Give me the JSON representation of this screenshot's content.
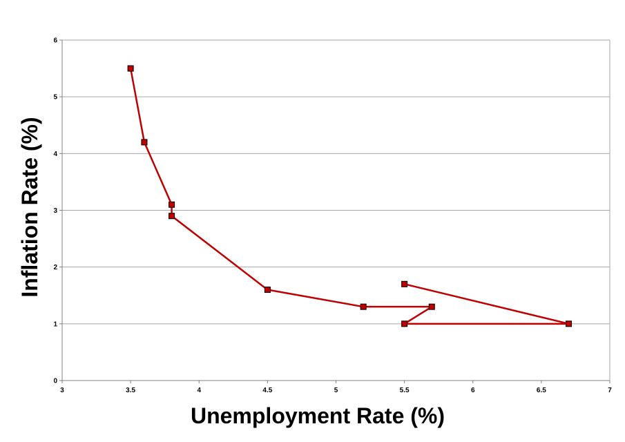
{
  "chart_data": {
    "type": "line",
    "title": "",
    "xlabel": "Unemployment Rate (%)",
    "ylabel": "Inflation Rate (%)",
    "xlim": [
      3,
      7
    ],
    "ylim": [
      0,
      6
    ],
    "x_ticks": [
      "3",
      "3.5",
      "4",
      "4.5",
      "5",
      "5.5",
      "6",
      "6.5",
      "7"
    ],
    "y_ticks": [
      "0",
      "1",
      "2",
      "3",
      "4",
      "5",
      "6"
    ],
    "grid": "horizontal",
    "legend": "none",
    "series": [
      {
        "color": "#c00000",
        "marker": "square",
        "points": [
          {
            "x": 3.5,
            "y": 5.5
          },
          {
            "x": 3.6,
            "y": 4.2
          },
          {
            "x": 3.8,
            "y": 3.1
          },
          {
            "x": 3.8,
            "y": 2.9
          },
          {
            "x": 4.5,
            "y": 1.6
          },
          {
            "x": 5.2,
            "y": 1.3
          },
          {
            "x": 5.7,
            "y": 1.3
          },
          {
            "x": 5.5,
            "y": 1.0
          },
          {
            "x": 6.7,
            "y": 1.0
          },
          {
            "x": 5.5,
            "y": 1.7
          }
        ]
      }
    ]
  }
}
